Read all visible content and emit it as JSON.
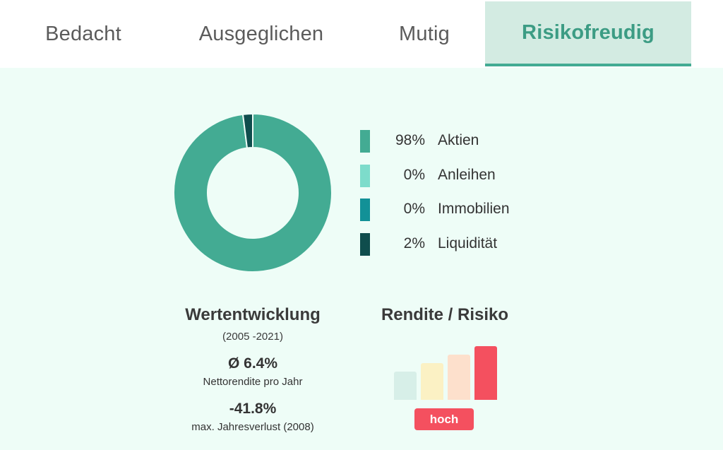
{
  "tabs": [
    {
      "label": "Bedacht",
      "active": false
    },
    {
      "label": "Ausgeglichen",
      "active": false
    },
    {
      "label": "Mutig",
      "active": false
    },
    {
      "label": "Risikofreudig",
      "active": true
    }
  ],
  "allocation": [
    {
      "percent": "98%",
      "label": "Aktien",
      "value": 98,
      "color": "#43ab93"
    },
    {
      "percent": "0%",
      "label": "Anleihen",
      "value": 0,
      "color": "#7ddccb"
    },
    {
      "percent": "0%",
      "label": "Immobilien",
      "value": 0,
      "color": "#129197"
    },
    {
      "percent": "2%",
      "label": "Liquidität",
      "value": 2,
      "color": "#0f4d4d"
    }
  ],
  "performance": {
    "title": "Wertentwicklung",
    "period": "(2005 -2021)",
    "average_return": "Ø 6.4%",
    "average_return_label": "Nettorendite pro Jahr",
    "max_loss": "-41.8%",
    "max_loss_label": "max. Jahresverlust (2008)"
  },
  "risk": {
    "title": "Rendite / Risiko",
    "level_label": "hoch",
    "level": 4,
    "levels_total": 4,
    "bar_colors": [
      "#d7efe8",
      "#fbf1c4",
      "#fde0cc",
      "#f4505f"
    ]
  }
}
